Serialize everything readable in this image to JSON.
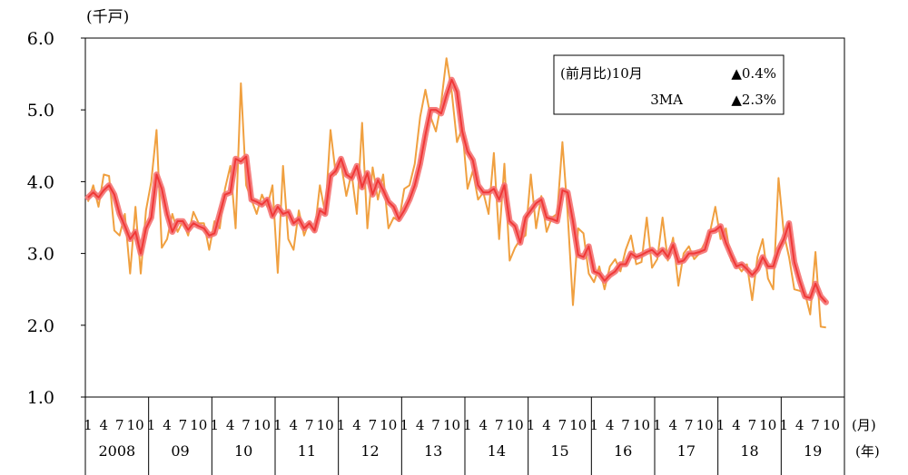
{
  "chart_data": {
    "type": "line",
    "y_unit_label": "(千戸)",
    "x_unit_month": "(月)",
    "x_unit_year": "(年)",
    "ylim": [
      1.0,
      6.0
    ],
    "y_ticks": [
      "1.0",
      "2.0",
      "3.0",
      "4.0",
      "5.0",
      "6.0"
    ],
    "month_ticks": [
      "1",
      "4",
      "7",
      "10"
    ],
    "years": [
      "2008",
      "09",
      "10",
      "11",
      "12",
      "13",
      "14",
      "15",
      "16",
      "17",
      "18",
      "19"
    ],
    "grid": false,
    "legend": {
      "placement": "top-right",
      "row1_label": "(前月比)10月",
      "row1_value": "▲0.4%",
      "row2_label": "3MA",
      "row2_value": "▲2.3%"
    },
    "series": [
      {
        "color": "#f0a040",
        "values": [
          3.72,
          3.95,
          3.65,
          4.1,
          4.08,
          3.32,
          3.25,
          3.55,
          2.72,
          3.65,
          2.72,
          3.6,
          4.0,
          4.72,
          3.08,
          3.2,
          3.55,
          3.3,
          3.45,
          3.25,
          3.58,
          3.42,
          3.42,
          3.05,
          3.45,
          3.35,
          3.9,
          4.22,
          3.35,
          5.37,
          3.95,
          3.75,
          3.55,
          3.82,
          3.65,
          3.95,
          2.73,
          4.22,
          3.2,
          3.05,
          3.6,
          3.25,
          3.45,
          3.3,
          3.95,
          3.55,
          4.72,
          4.1,
          4.25,
          3.8,
          4.12,
          3.55,
          4.82,
          3.35,
          4.2,
          3.75,
          4.1,
          3.35,
          3.5,
          3.45,
          3.9,
          3.95,
          4.25,
          4.9,
          5.28,
          4.9,
          4.7,
          5.1,
          5.72,
          5.25,
          4.55,
          4.75,
          3.9,
          4.15,
          3.75,
          3.85,
          3.55,
          4.4,
          3.2,
          4.25,
          2.9,
          3.08,
          3.2,
          3.25,
          4.1,
          3.35,
          3.8,
          3.3,
          3.5,
          3.55,
          4.55,
          3.55,
          2.28,
          3.35,
          3.28,
          2.72,
          2.6,
          2.82,
          2.5,
          2.82,
          2.92,
          2.75,
          3.05,
          3.25,
          2.85,
          2.88,
          3.5,
          2.8,
          2.92,
          3.5,
          2.9,
          3.22,
          2.55,
          3.0,
          3.1,
          2.92,
          3.0,
          3.15,
          3.3,
          3.65,
          3.2,
          3.35,
          2.9,
          2.85,
          2.75,
          2.85,
          2.35,
          2.95,
          3.2,
          2.65,
          2.5,
          4.05,
          3.28,
          2.95,
          2.5,
          2.48,
          2.45,
          2.15,
          3.02,
          1.98,
          1.97
        ]
      },
      {
        "color": "#f03838",
        "values": [
          3.78,
          3.85,
          3.78,
          3.88,
          3.95,
          3.82,
          3.55,
          3.38,
          3.2,
          3.3,
          3.0,
          3.35,
          3.5,
          4.1,
          3.9,
          3.55,
          3.3,
          3.45,
          3.45,
          3.33,
          3.42,
          3.38,
          3.35,
          3.25,
          3.28,
          3.55,
          3.82,
          3.85,
          4.32,
          4.28,
          4.35,
          3.75,
          3.72,
          3.68,
          3.75,
          3.52,
          3.65,
          3.55,
          3.58,
          3.42,
          3.48,
          3.35,
          3.42,
          3.32,
          3.6,
          3.55,
          4.08,
          4.15,
          4.32,
          4.1,
          4.05,
          4.22,
          3.92,
          4.12,
          3.82,
          4.02,
          3.88,
          3.72,
          3.65,
          3.48,
          3.6,
          3.75,
          3.95,
          4.25,
          4.65,
          5.0,
          5.0,
          4.95,
          5.2,
          5.42,
          5.25,
          4.7,
          4.42,
          4.3,
          3.95,
          3.85,
          3.85,
          3.9,
          3.75,
          3.95,
          3.45,
          3.38,
          3.15,
          3.5,
          3.6,
          3.7,
          3.75,
          3.5,
          3.48,
          3.45,
          3.88,
          3.85,
          3.45,
          2.98,
          2.95,
          3.1,
          2.75,
          2.72,
          2.62,
          2.7,
          2.75,
          2.85,
          2.85,
          3.0,
          2.95,
          2.98,
          3.02,
          3.05,
          2.98,
          3.05,
          2.95,
          3.12,
          2.88,
          2.9,
          3.0,
          3.0,
          3.02,
          3.05,
          3.3,
          3.32,
          3.38,
          3.15,
          2.98,
          2.82,
          2.85,
          2.78,
          2.7,
          2.78,
          2.95,
          2.82,
          2.82,
          3.05,
          3.2,
          3.42,
          2.88,
          2.62,
          2.4,
          2.38,
          2.58,
          2.4,
          2.32
        ]
      }
    ]
  }
}
